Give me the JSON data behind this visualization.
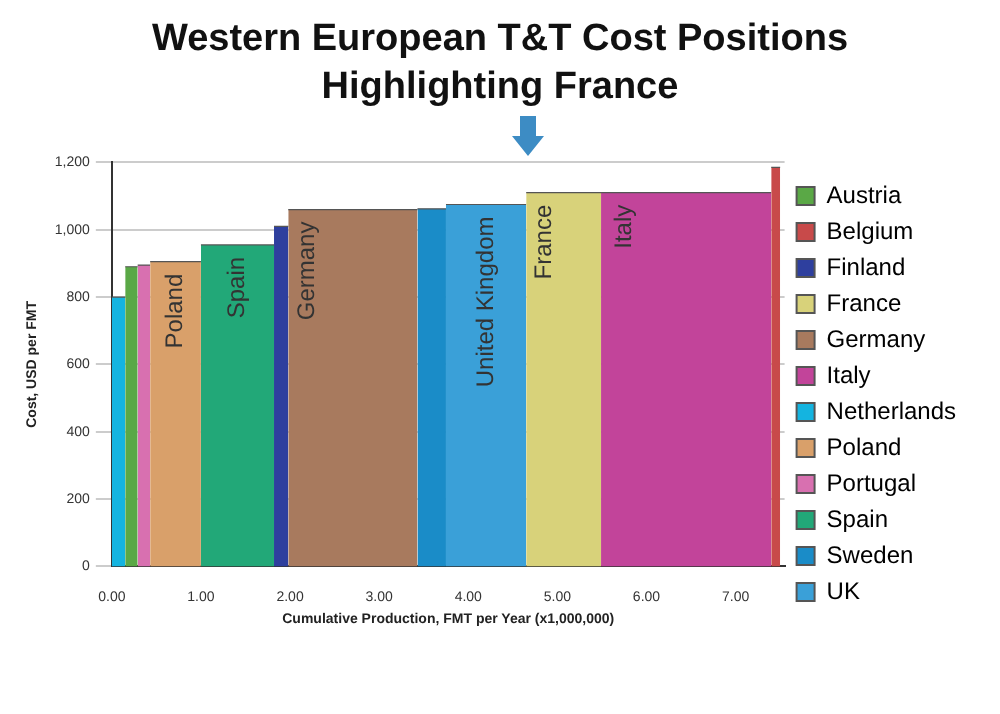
{
  "chart_data": {
    "type": "area",
    "title": "Western European T&T Cost Positions\nHighlighting France",
    "xlabel": "Cumulative Production, FMT per Year (x1,000,000)",
    "ylabel": "Cost, USD per FMT",
    "series": [
      {
        "name": "Austria",
        "color": "#5aa846",
        "x": [
          0.15,
          0.29
        ],
        "values": [
          890,
          890
        ]
      },
      {
        "name": "Belgium",
        "color": "#c84a4a",
        "x": [
          7.4,
          7.5
        ],
        "values": [
          1185,
          1185
        ]
      },
      {
        "name": "Finland",
        "color": "#2e3f9e",
        "x": [
          1.82,
          1.98
        ],
        "values": [
          1010,
          1010
        ]
      },
      {
        "name": "France",
        "color": "#d8d27a",
        "x": [
          4.65,
          5.49
        ],
        "values": [
          1110,
          1110
        ]
      },
      {
        "name": "Germany",
        "color": "#a87a5e",
        "x": [
          1.98,
          3.43
        ],
        "values": [
          1060,
          1060
        ]
      },
      {
        "name": "Italy",
        "color": "#c2449a",
        "x": [
          5.49,
          7.4
        ],
        "values": [
          1110,
          1110
        ]
      },
      {
        "name": "Netherlands",
        "color": "#14b4e0",
        "x": [
          0,
          0.15
        ],
        "values": [
          800,
          800
        ]
      },
      {
        "name": "Poland",
        "color": "#d9a06a",
        "x": [
          0.43,
          1.0
        ],
        "values": [
          905,
          905
        ]
      },
      {
        "name": "Portugal",
        "color": "#d870b0",
        "x": [
          0.29,
          0.43
        ],
        "values": [
          895,
          895
        ]
      },
      {
        "name": "Spain",
        "color": "#22a878",
        "x": [
          1.0,
          1.82
        ],
        "values": [
          955,
          955
        ]
      },
      {
        "name": "Sweden",
        "color": "#1a8cc8",
        "x": [
          3.43,
          3.75
        ],
        "values": [
          1062,
          1062
        ]
      },
      {
        "name": "UK",
        "color": "#3aa0d8",
        "x": [
          3.75,
          4.65
        ],
        "values": [
          1075,
          1075
        ]
      }
    ],
    "xlim": [
      0,
      7.55
    ],
    "xticks": [
      {
        "value": 0,
        "label": "0.00"
      },
      {
        "value": 1,
        "label": "1.00"
      },
      {
        "value": 2,
        "label": "2.00"
      },
      {
        "value": 3,
        "label": "3.00"
      },
      {
        "value": 4,
        "label": "4.00"
      },
      {
        "value": 5,
        "label": "5.00"
      },
      {
        "value": 6,
        "label": "6.00"
      },
      {
        "value": 7,
        "label": "7.00"
      }
    ],
    "ylim": [
      0,
      1200
    ],
    "yticks": [
      0,
      200,
      400,
      600,
      800,
      {
        "value": 1000,
        "label": "1,000"
      },
      {
        "value": 1200,
        "label": "1,200"
      }
    ],
    "grid": "y",
    "legend": "right",
    "annotations": [
      {
        "text": "Poland",
        "x": 0.715,
        "y": 905
      },
      {
        "text": "Spain",
        "x": 1.41,
        "y": 955
      },
      {
        "text": "Germany",
        "x": 2.2,
        "y": 1060
      },
      {
        "text": "United Kingdom",
        "x": 4.2,
        "y": 1075
      },
      {
        "text": "France",
        "x": 4.85,
        "y": 1110
      },
      {
        "text": "Italy",
        "x": 5.75,
        "y": 1110
      }
    ]
  }
}
